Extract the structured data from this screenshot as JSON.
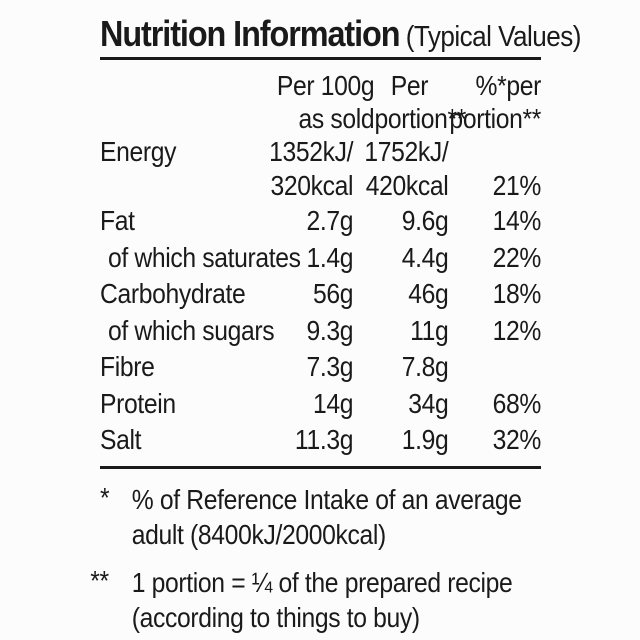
{
  "title": {
    "main": "Nutrition Information",
    "suffix": "(Typical Values)"
  },
  "table": {
    "header": {
      "per100_l1": "Per 100g",
      "per100_l2": "as sold",
      "portion_l1": "Per",
      "portion_l2": "portion**",
      "percent_l1": "%*per",
      "percent_l2": "portion**"
    },
    "energy": {
      "label": "Energy",
      "per100_l1": "1352kJ/",
      "per100_l2": "320kcal",
      "portion_l1": "1752kJ/",
      "portion_l2": "420kcal",
      "percent": "21%"
    },
    "rows": [
      {
        "label": "Fat",
        "per100": "2.7g",
        "portion": "9.6g",
        "percent": "14%"
      },
      {
        "label": "of which saturates",
        "per100": "1.4g",
        "portion": "4.4g",
        "percent": "22%"
      },
      {
        "label": "Carbohydrate",
        "per100": "56g",
        "portion": "46g",
        "percent": "18%"
      },
      {
        "label": "of which sugars",
        "per100": "9.3g",
        "portion": "11g",
        "percent": "12%"
      },
      {
        "label": "Fibre",
        "per100": "7.3g",
        "portion": "7.8g",
        "percent": ""
      },
      {
        "label": "Protein",
        "per100": "14g",
        "portion": "34g",
        "percent": "68%"
      },
      {
        "label": "Salt",
        "per100": "11.3g",
        "portion": "1.9g",
        "percent": "32%"
      }
    ]
  },
  "footnotes": [
    {
      "marker": "*",
      "lines": [
        "% of Reference Intake of an average",
        "adult (8400kJ/2000kcal)"
      ]
    },
    {
      "marker": "**",
      "lines": [
        "1 portion = ¼ of the prepared recipe",
        "(according to things to buy)"
      ]
    }
  ],
  "colors": {
    "text": "#1a1a1a",
    "background": "#fcfcfc"
  }
}
